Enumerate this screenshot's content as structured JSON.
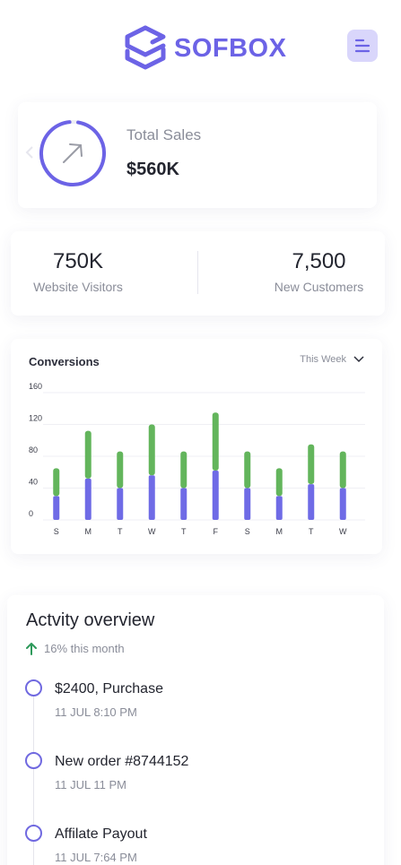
{
  "header": {
    "logo_text": "SOFBOX",
    "brand_color": "#6c63e6",
    "menu_icon": "menu-icon"
  },
  "sales": {
    "label": "Total Sales",
    "value": "$560K",
    "icon": "arrow-up-right-icon"
  },
  "stats": [
    {
      "value": "750K",
      "label": "Website Visitors"
    },
    {
      "value": "7,500",
      "label": "New Customers"
    }
  ],
  "conversions": {
    "title": "Conversions",
    "period": "This Week",
    "colors": {
      "base": "#6f6be6",
      "top": "#63b55c"
    }
  },
  "chart_data": {
    "type": "bar",
    "stacked": true,
    "categories": [
      "S",
      "M",
      "T",
      "W",
      "T",
      "F",
      "S",
      "M",
      "T",
      "W"
    ],
    "series": [
      {
        "values": [
          35,
          60,
          46,
          64,
          46,
          73,
          46,
          35,
          50,
          46
        ]
      },
      {
        "values": [
          30,
          52,
          40,
          56,
          40,
          62,
          40,
          30,
          45,
          40
        ]
      }
    ],
    "y_ticks": [
      0,
      40,
      80,
      120,
      160
    ],
    "ylim": [
      0,
      160
    ],
    "grid": true,
    "legend": "none"
  },
  "activity": {
    "title": "Actvity overview",
    "subtitle": "16% this month",
    "items": [
      {
        "title": "$2400, Purchase",
        "time": "11 JUL 8:10 PM"
      },
      {
        "title": "New order #8744152",
        "time": "11 JUL 11 PM"
      },
      {
        "title": "Affilate Payout",
        "time": "11 JUL 7:64 PM"
      }
    ]
  }
}
